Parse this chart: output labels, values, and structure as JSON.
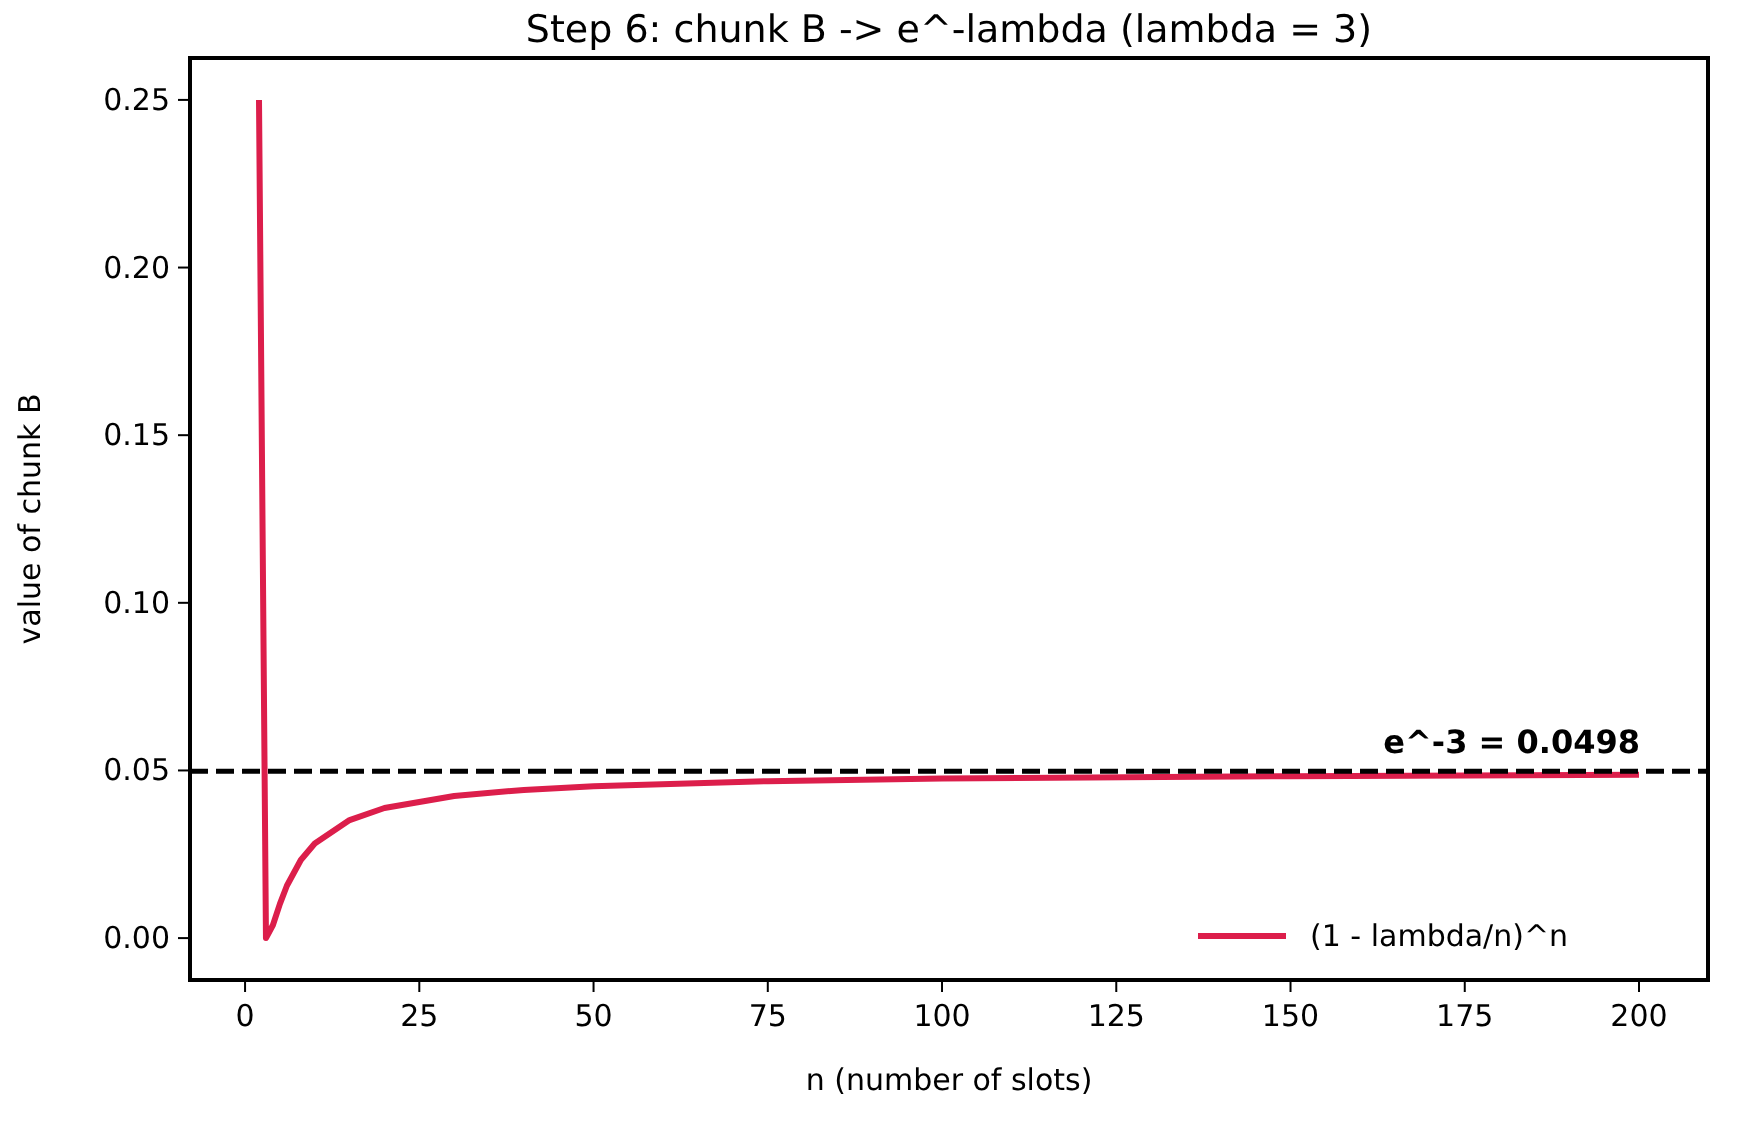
{
  "chart_data": {
    "type": "line",
    "title": "Step 6: chunk B -> e^-lambda  (lambda = 3)",
    "xlabel": "n  (number of slots)",
    "ylabel": "value of chunk B",
    "series": [
      {
        "name": "(1 - lambda/n)^n",
        "color": "#dc1e4b",
        "x": [
          2,
          3,
          4,
          5,
          6,
          8,
          10,
          15,
          20,
          30,
          40,
          50,
          75,
          100,
          150,
          200
        ],
        "values": [
          0.25,
          0,
          0.0039,
          0.0102,
          0.0156,
          0.0233,
          0.0282,
          0.0352,
          0.0388,
          0.0424,
          0.0442,
          0.0453,
          0.0468,
          0.0476,
          0.0483,
          0.0487
        ]
      }
    ],
    "xlim": [
      -7.9,
      209.9
    ],
    "xticks": [
      0,
      25,
      50,
      75,
      100,
      125,
      150,
      175,
      200
    ],
    "ylim": [
      -0.0125,
      0.2625
    ],
    "yticks": [
      {
        "value": 0,
        "label": "0.00"
      },
      {
        "value": 0.05,
        "label": "0.05"
      },
      {
        "value": 0.1,
        "label": "0.10"
      },
      {
        "value": 0.15,
        "label": "0.15"
      },
      {
        "value": 0.2,
        "label": "0.20"
      },
      {
        "value": 0.25,
        "label": "0.25"
      }
    ],
    "ref_lines": [
      {
        "axis": "y",
        "value": 0.0498,
        "label": "e^-3 = 0.0498",
        "color": "#000000",
        "line_style": "dashed"
      }
    ],
    "legend": "bottom right",
    "grid": false,
    "marker": "none",
    "line_style": "solid"
  }
}
